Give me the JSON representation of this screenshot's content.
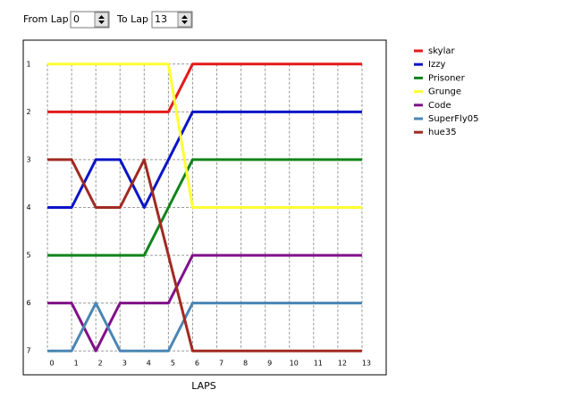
{
  "controls": {
    "from_label": "From Lap",
    "from_value": 0,
    "to_label": "To Lap",
    "to_value": 13
  },
  "chart_data": {
    "type": "line",
    "xlabel": "LAPS",
    "x": [
      0,
      1,
      2,
      3,
      4,
      5,
      6,
      7,
      8,
      9,
      10,
      11,
      12,
      13
    ],
    "series": [
      {
        "name": "skylar",
        "color": "#e41a1a",
        "values": [
          2,
          2,
          2,
          2,
          2,
          2,
          1,
          1,
          1,
          1,
          1,
          1,
          1,
          1
        ]
      },
      {
        "name": "Izzy",
        "color": "#0a14c8",
        "values": [
          4,
          4,
          3,
          3,
          4,
          3,
          2,
          2,
          2,
          2,
          2,
          2,
          2,
          2
        ]
      },
      {
        "name": "Prisoner",
        "color": "#10841a",
        "values": [
          5,
          5,
          5,
          5,
          5,
          4,
          3,
          3,
          3,
          3,
          3,
          3,
          3,
          3
        ]
      },
      {
        "name": "Grunge",
        "color": "#ffff33",
        "values": [
          1,
          1,
          1,
          1,
          1,
          1,
          4,
          4,
          4,
          4,
          4,
          4,
          4,
          4
        ]
      },
      {
        "name": "Code",
        "color": "#80108a",
        "values": [
          6,
          6,
          7,
          6,
          6,
          6,
          5,
          5,
          5,
          5,
          5,
          5,
          5,
          5
        ]
      },
      {
        "name": "SuperFly05",
        "color": "#4a86b4",
        "values": [
          7,
          7,
          6,
          7,
          7,
          7,
          6,
          6,
          6,
          6,
          6,
          6,
          6,
          6
        ]
      },
      {
        "name": "hue35",
        "color": "#a02a22",
        "values": [
          3,
          3,
          4,
          4,
          3,
          5,
          7,
          7,
          7,
          7,
          7,
          7,
          7,
          7
        ]
      }
    ],
    "xlim": [
      -1,
      14
    ],
    "ylim": [
      7.5,
      0.5
    ],
    "xticks": [
      0,
      1,
      2,
      3,
      4,
      5,
      6,
      7,
      8,
      9,
      10,
      11,
      12,
      13
    ],
    "yticks": [
      1,
      2,
      3,
      4,
      5,
      6,
      7
    ],
    "grid": true,
    "legend": "right"
  }
}
